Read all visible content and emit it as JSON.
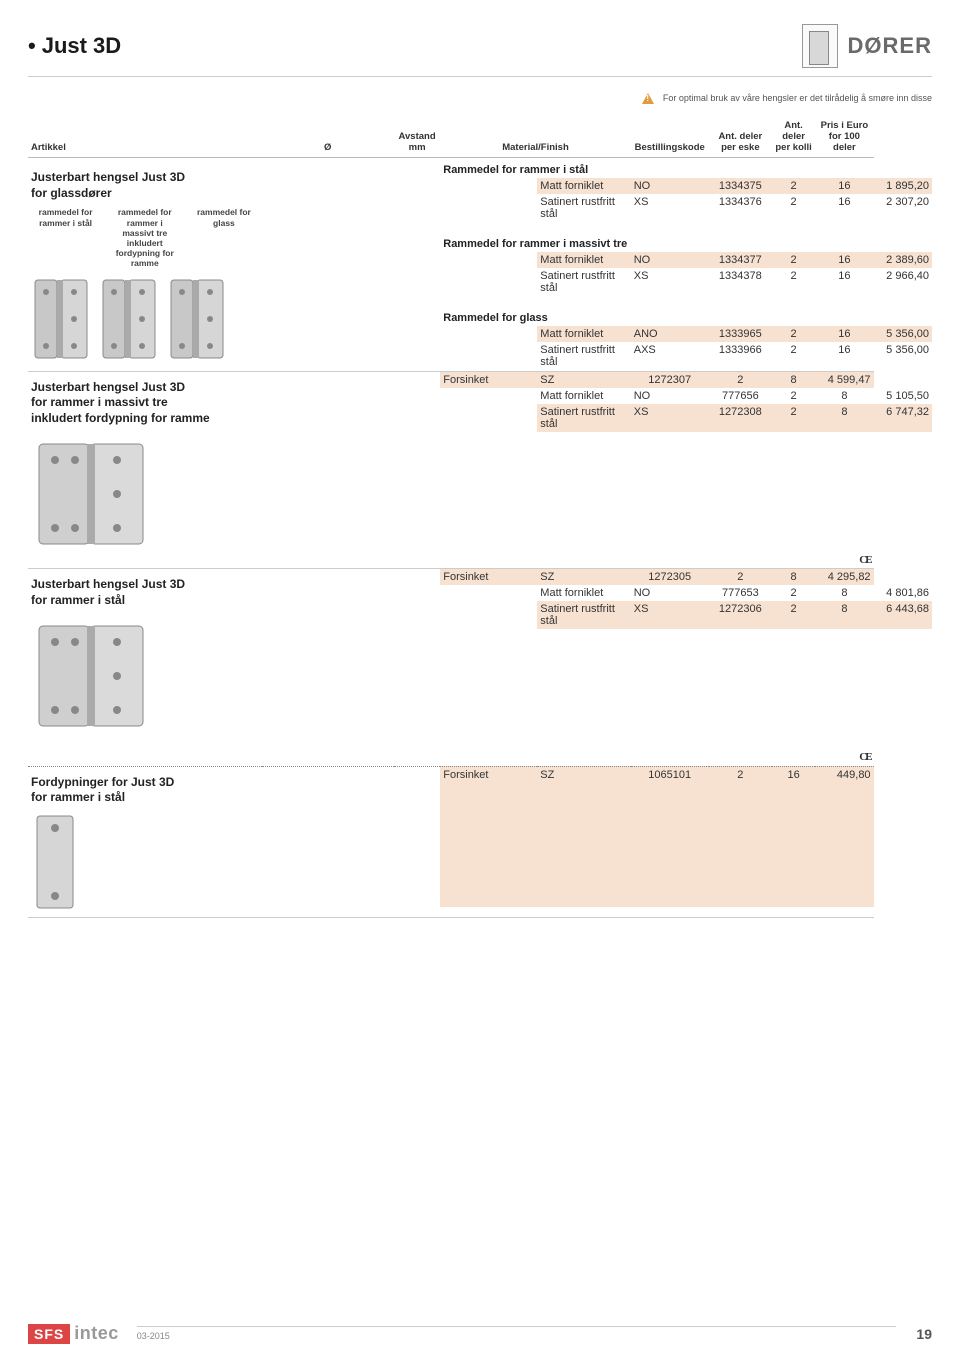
{
  "page_title": "Just 3D",
  "header_right": "DØRER",
  "warning_text": "For optimal bruk av våre hengsler er det tilrådelig å smøre inn disse",
  "columns": {
    "art": "Artikkel",
    "dia": "Ø",
    "mm_l1": "Avstand",
    "mm_l2": "mm",
    "mat": "Material/Finish",
    "code": "Bestillingskode",
    "eske_l1": "Ant. deler",
    "eske_l2": "per eske",
    "kolli_l1": "Ant. deler",
    "kolli_l2": "per kolli",
    "price_l1": "Pris i Euro",
    "price_l2": "for 100 deler"
  },
  "sections": [
    {
      "article_title_l1": "Justerbart hengsel Just 3D",
      "article_title_l2": "for glassdører",
      "sublabels": [
        "rammedel for rammer i stål",
        "rammedel for rammer i massivt tre inkludert fordypning for ramme",
        "rammedel for glass"
      ],
      "groups": [
        {
          "heading": "Rammedel for rammer i stål",
          "rows": [
            {
              "mat": "Matt forniklet",
              "mc": "NO",
              "code": "1334375",
              "eske": "2",
              "kolli": "16",
              "price": "1 895,20",
              "alt": true
            },
            {
              "mat": "Satinert rustfritt stål",
              "mc": "XS",
              "code": "1334376",
              "eske": "2",
              "kolli": "16",
              "price": "2 307,20"
            }
          ]
        },
        {
          "heading": "Rammedel for rammer i massivt tre",
          "heading2": "",
          "rows": [
            {
              "mat": "Matt forniklet",
              "mc": "NO",
              "code": "1334377",
              "eske": "2",
              "kolli": "16",
              "price": "2 389,60",
              "alt": true
            },
            {
              "mat": "Satinert rustfritt stål",
              "mc": "XS",
              "code": "1334378",
              "eske": "2",
              "kolli": "16",
              "price": "2 966,40"
            }
          ]
        },
        {
          "heading": "Rammedel for glass",
          "rows": [
            {
              "mat": "Matt forniklet",
              "mc": "ANO",
              "code": "1333965",
              "eske": "2",
              "kolli": "16",
              "price": "5 356,00",
              "alt": true
            },
            {
              "mat": "Satinert rustfritt stål",
              "mc": "AXS",
              "code": "1333966",
              "eske": "2",
              "kolli": "16",
              "price": "5 356,00"
            }
          ]
        }
      ]
    },
    {
      "article_title_l1": "Justerbart hengsel Just 3D",
      "article_title_l2": "for rammer i massivt tre",
      "article_title_l3": "inkludert fordypning for ramme",
      "rows": [
        {
          "mat": "Forsinket",
          "mc": "SZ",
          "code": "1272307",
          "eske": "2",
          "kolli": "8",
          "price": "4 599,47",
          "alt": true
        },
        {
          "mat": "Matt forniklet",
          "mc": "NO",
          "code": "777656",
          "eske": "2",
          "kolli": "8",
          "price": "5 105,50"
        },
        {
          "mat": "Satinert rustfritt stål",
          "mc": "XS",
          "code": "1272308",
          "eske": "2",
          "kolli": "8",
          "price": "6 747,32",
          "alt": true
        }
      ],
      "ce": true
    },
    {
      "article_title_l1": "Justerbart hengsel Just 3D",
      "article_title_l2": "for rammer i stål",
      "rows": [
        {
          "mat": "Forsinket",
          "mc": "SZ",
          "code": "1272305",
          "eske": "2",
          "kolli": "8",
          "price": "4 295,82",
          "alt": true
        },
        {
          "mat": "Matt forniklet",
          "mc": "NO",
          "code": "777653",
          "eske": "2",
          "kolli": "8",
          "price": "4 801,86"
        },
        {
          "mat": "Satinert rustfritt stål",
          "mc": "XS",
          "code": "1272306",
          "eske": "2",
          "kolli": "8",
          "price": "6 443,68",
          "alt": true
        }
      ],
      "ce": true
    },
    {
      "article_title_l1": "Fordypninger for Just 3D",
      "article_title_l2": "for rammer i stål",
      "rows": [
        {
          "mat": "Forsinket",
          "mc": "SZ",
          "code": "1065101",
          "eske": "2",
          "kolli": "16",
          "price": "449,80",
          "alt": true
        }
      ]
    }
  ],
  "footer": {
    "brand1": "SFS",
    "brand2": "intec",
    "date": "03-2015",
    "page": "19"
  },
  "colors": {
    "alt_bg": "#f7e2d2",
    "divider": "#cccccc",
    "text": "#333333",
    "accent": "#d44444"
  }
}
